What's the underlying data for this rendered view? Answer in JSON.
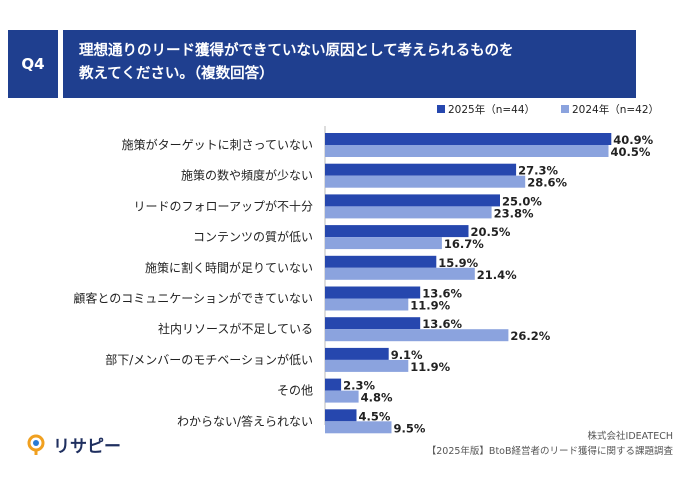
{
  "header": {
    "q_label": "Q4",
    "title": "理想通りのリード獲得ができていない原因として考えられるものを\n教えてください。（複数回答）"
  },
  "footer": {
    "company": "株式会社IDEATECH",
    "survey": "【2025年版】BtoB経営者のリード獲得に関する課題調査",
    "logo_text": "リサピー"
  },
  "colors": {
    "series_2025": "#2647ae",
    "series_2024": "#8ba3de",
    "header_bg": "#1f3f8f"
  },
  "chart_data": {
    "type": "bar",
    "orientation": "horizontal",
    "title": "理想通りのリード獲得ができていない原因として考えられるものを教えてください。（複数回答）",
    "xlim": [
      0,
      45
    ],
    "unit": "%",
    "categories": [
      "施策がターゲットに刺さっていない",
      "施策の数や頻度が少ない",
      "リードのフォローアップが不十分",
      "コンテンツの質が低い",
      "施策に割く時間が足りていない",
      "顧客とのコミュニケーションができていない",
      "社内リソースが不足している",
      "部下/メンバーのモチベーションが低い",
      "その他",
      "わからない/答えられない"
    ],
    "series": [
      {
        "name": "2025年（n=44）",
        "values": [
          40.9,
          27.3,
          25.0,
          20.5,
          15.9,
          13.6,
          13.6,
          9.1,
          2.3,
          4.5
        ],
        "labels": [
          "40.9%",
          "27.3%",
          "25.0%",
          "20.5%",
          "15.9%",
          "13.6%",
          "13.6%",
          "9.1%",
          "2.3%",
          "4.5%"
        ]
      },
      {
        "name": "2024年（n=42）",
        "values": [
          40.5,
          28.6,
          23.8,
          16.7,
          21.4,
          11.9,
          26.2,
          11.9,
          4.8,
          9.5
        ],
        "labels": [
          "40.5%",
          "28.6%",
          "23.8%",
          "16.7%",
          "21.4%",
          "11.9%",
          "26.2%",
          "11.9%",
          "4.8%",
          "9.5%"
        ]
      }
    ],
    "legend_position": "top-right"
  }
}
